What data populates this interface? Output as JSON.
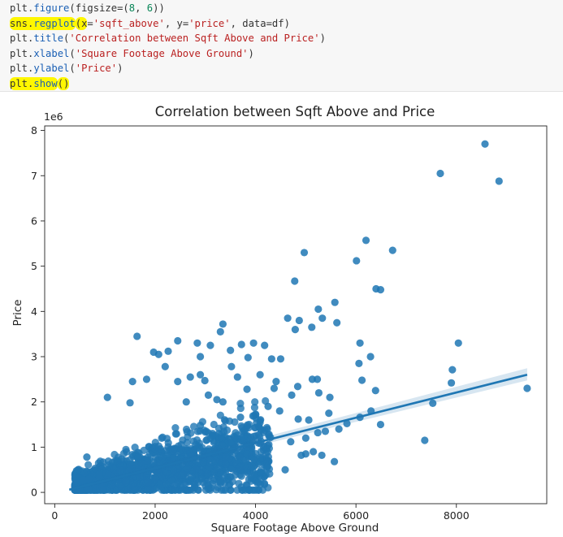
{
  "code": {
    "lines": [
      {
        "prefix": "plt.",
        "fn": "figure",
        "args": [
          {
            "t": "plain",
            "v": "(figsize=("
          },
          {
            "t": "num",
            "v": "8"
          },
          {
            "t": "plain",
            "v": ", "
          },
          {
            "t": "num",
            "v": "6"
          },
          {
            "t": "plain",
            "v": "))"
          }
        ],
        "highlight": false
      },
      {
        "prefix": "sns.",
        "fn": "regplot",
        "args": [
          {
            "t": "plain",
            "v": "(x="
          },
          {
            "t": "str",
            "v": "'sqft_above'"
          },
          {
            "t": "plain",
            "v": ", y="
          },
          {
            "t": "str",
            "v": "'price'"
          },
          {
            "t": "plain",
            "v": ", data=df)"
          }
        ],
        "highlight": true
      },
      {
        "prefix": "plt.",
        "fn": "title",
        "args": [
          {
            "t": "plain",
            "v": "("
          },
          {
            "t": "str",
            "v": "'Correlation between Sqft Above and Price'"
          },
          {
            "t": "plain",
            "v": ")"
          }
        ],
        "highlight": false
      },
      {
        "prefix": "plt.",
        "fn": "xlabel",
        "args": [
          {
            "t": "plain",
            "v": "("
          },
          {
            "t": "str",
            "v": "'Square Footage Above Ground'"
          },
          {
            "t": "plain",
            "v": ")"
          }
        ],
        "highlight": false
      },
      {
        "prefix": "plt.",
        "fn": "ylabel",
        "args": [
          {
            "t": "plain",
            "v": "("
          },
          {
            "t": "str",
            "v": "'Price'"
          },
          {
            "t": "plain",
            "v": ")"
          }
        ],
        "highlight": false
      },
      {
        "prefix": "plt.",
        "fn": "show",
        "args": [
          {
            "t": "plain",
            "v": "()"
          }
        ],
        "highlight": true
      }
    ]
  },
  "chart_data": {
    "type": "scatter",
    "title": "Correlation between Sqft Above and Price",
    "xlabel": "Square Footage Above Ground",
    "ylabel": "Price",
    "y_scale_label": "1e6",
    "xlim": [
      -200,
      9800
    ],
    "ylim": [
      -0.25,
      8.1
    ],
    "xticks": [
      0,
      2000,
      4000,
      6000,
      8000
    ],
    "xtick_labels": [
      "0",
      "2000",
      "4000",
      "6000",
      "8000"
    ],
    "yticks": [
      0,
      1,
      2,
      3,
      4,
      5,
      6,
      7,
      8
    ],
    "ytick_labels": [
      "0",
      "1",
      "2",
      "3",
      "4",
      "5",
      "6",
      "7",
      "8"
    ],
    "grid": false,
    "point_color": "#1f77b4",
    "regression_line": {
      "x": [
        290,
        9410
      ],
      "y": [
        0.06,
        2.6
      ]
    },
    "points": [
      [
        8570,
        7.7
      ],
      [
        7680,
        7.05
      ],
      [
        8850,
        6.88
      ],
      [
        4970,
        5.3
      ],
      [
        6200,
        5.57
      ],
      [
        6730,
        5.35
      ],
      [
        6010,
        5.12
      ],
      [
        4780,
        4.67
      ],
      [
        6400,
        4.5
      ],
      [
        6490,
        4.48
      ],
      [
        5580,
        4.2
      ],
      [
        5250,
        4.05
      ],
      [
        5330,
        3.85
      ],
      [
        5620,
        3.75
      ],
      [
        4640,
        3.85
      ],
      [
        4870,
        3.8
      ],
      [
        3350,
        3.72
      ],
      [
        4790,
        3.6
      ],
      [
        5120,
        3.65
      ],
      [
        6080,
        3.3
      ],
      [
        8040,
        3.3
      ],
      [
        6290,
        3.0
      ],
      [
        6060,
        2.85
      ],
      [
        7920,
        2.71
      ],
      [
        6120,
        2.48
      ],
      [
        7900,
        2.42
      ],
      [
        9410,
        2.3
      ],
      [
        6390,
        2.25
      ],
      [
        7530,
        1.97
      ],
      [
        6300,
        1.8
      ],
      [
        5460,
        1.75
      ],
      [
        6080,
        1.66
      ],
      [
        5060,
        1.6
      ],
      [
        5820,
        1.52
      ],
      [
        6490,
        1.5
      ],
      [
        5660,
        1.4
      ],
      [
        7370,
        1.15
      ],
      [
        5000,
        1.2
      ],
      [
        4250,
        1.9
      ],
      [
        4480,
        1.8
      ],
      [
        2700,
        2.55
      ],
      [
        2900,
        2.6
      ],
      [
        1830,
        2.5
      ],
      [
        3060,
        2.15
      ],
      [
        1050,
        2.1
      ],
      [
        1640,
        3.45
      ],
      [
        2070,
        3.05
      ],
      [
        1970,
        3.1
      ],
      [
        2450,
        3.35
      ],
      [
        3720,
        3.27
      ],
      [
        3500,
        3.14
      ],
      [
        3850,
        2.98
      ],
      [
        2900,
        3.0
      ],
      [
        3100,
        3.25
      ],
      [
        3300,
        3.55
      ],
      [
        4180,
        3.25
      ],
      [
        4320,
        2.95
      ],
      [
        3960,
        3.3
      ],
      [
        4500,
        2.95
      ],
      [
        2260,
        3.12
      ],
      [
        2840,
        3.3
      ],
      [
        3520,
        2.78
      ],
      [
        4090,
        2.6
      ],
      [
        4410,
        2.45
      ],
      [
        3230,
        2.05
      ],
      [
        3830,
        2.28
      ],
      [
        2620,
        2.0
      ],
      [
        4720,
        2.15
      ],
      [
        2200,
        2.78
      ],
      [
        2990,
        2.47
      ],
      [
        1550,
        2.45
      ],
      [
        2450,
        2.45
      ],
      [
        3640,
        2.55
      ],
      [
        5230,
        2.5
      ],
      [
        4370,
        2.3
      ],
      [
        5480,
        2.1
      ],
      [
        5260,
        2.2
      ],
      [
        5130,
        2.5
      ],
      [
        4840,
        2.34
      ],
      [
        2900,
        1.48
      ],
      [
        3350,
        2.0
      ],
      [
        1500,
        1.98
      ],
      [
        640,
        0.78
      ],
      [
        4910,
        0.82
      ],
      [
        5320,
        0.82
      ],
      [
        5570,
        0.68
      ],
      [
        4590,
        0.5
      ],
      [
        2590,
        0.82
      ],
      [
        3660,
        0.52
      ],
      [
        3940,
        0.48
      ],
      [
        5000,
        0.85
      ],
      [
        4230,
        0.7
      ],
      [
        5150,
        0.9
      ],
      [
        4700,
        1.12
      ],
      [
        5240,
        1.32
      ],
      [
        4850,
        1.62
      ],
      [
        5390,
        1.35
      ],
      [
        3700,
        1.66
      ]
    ]
  }
}
